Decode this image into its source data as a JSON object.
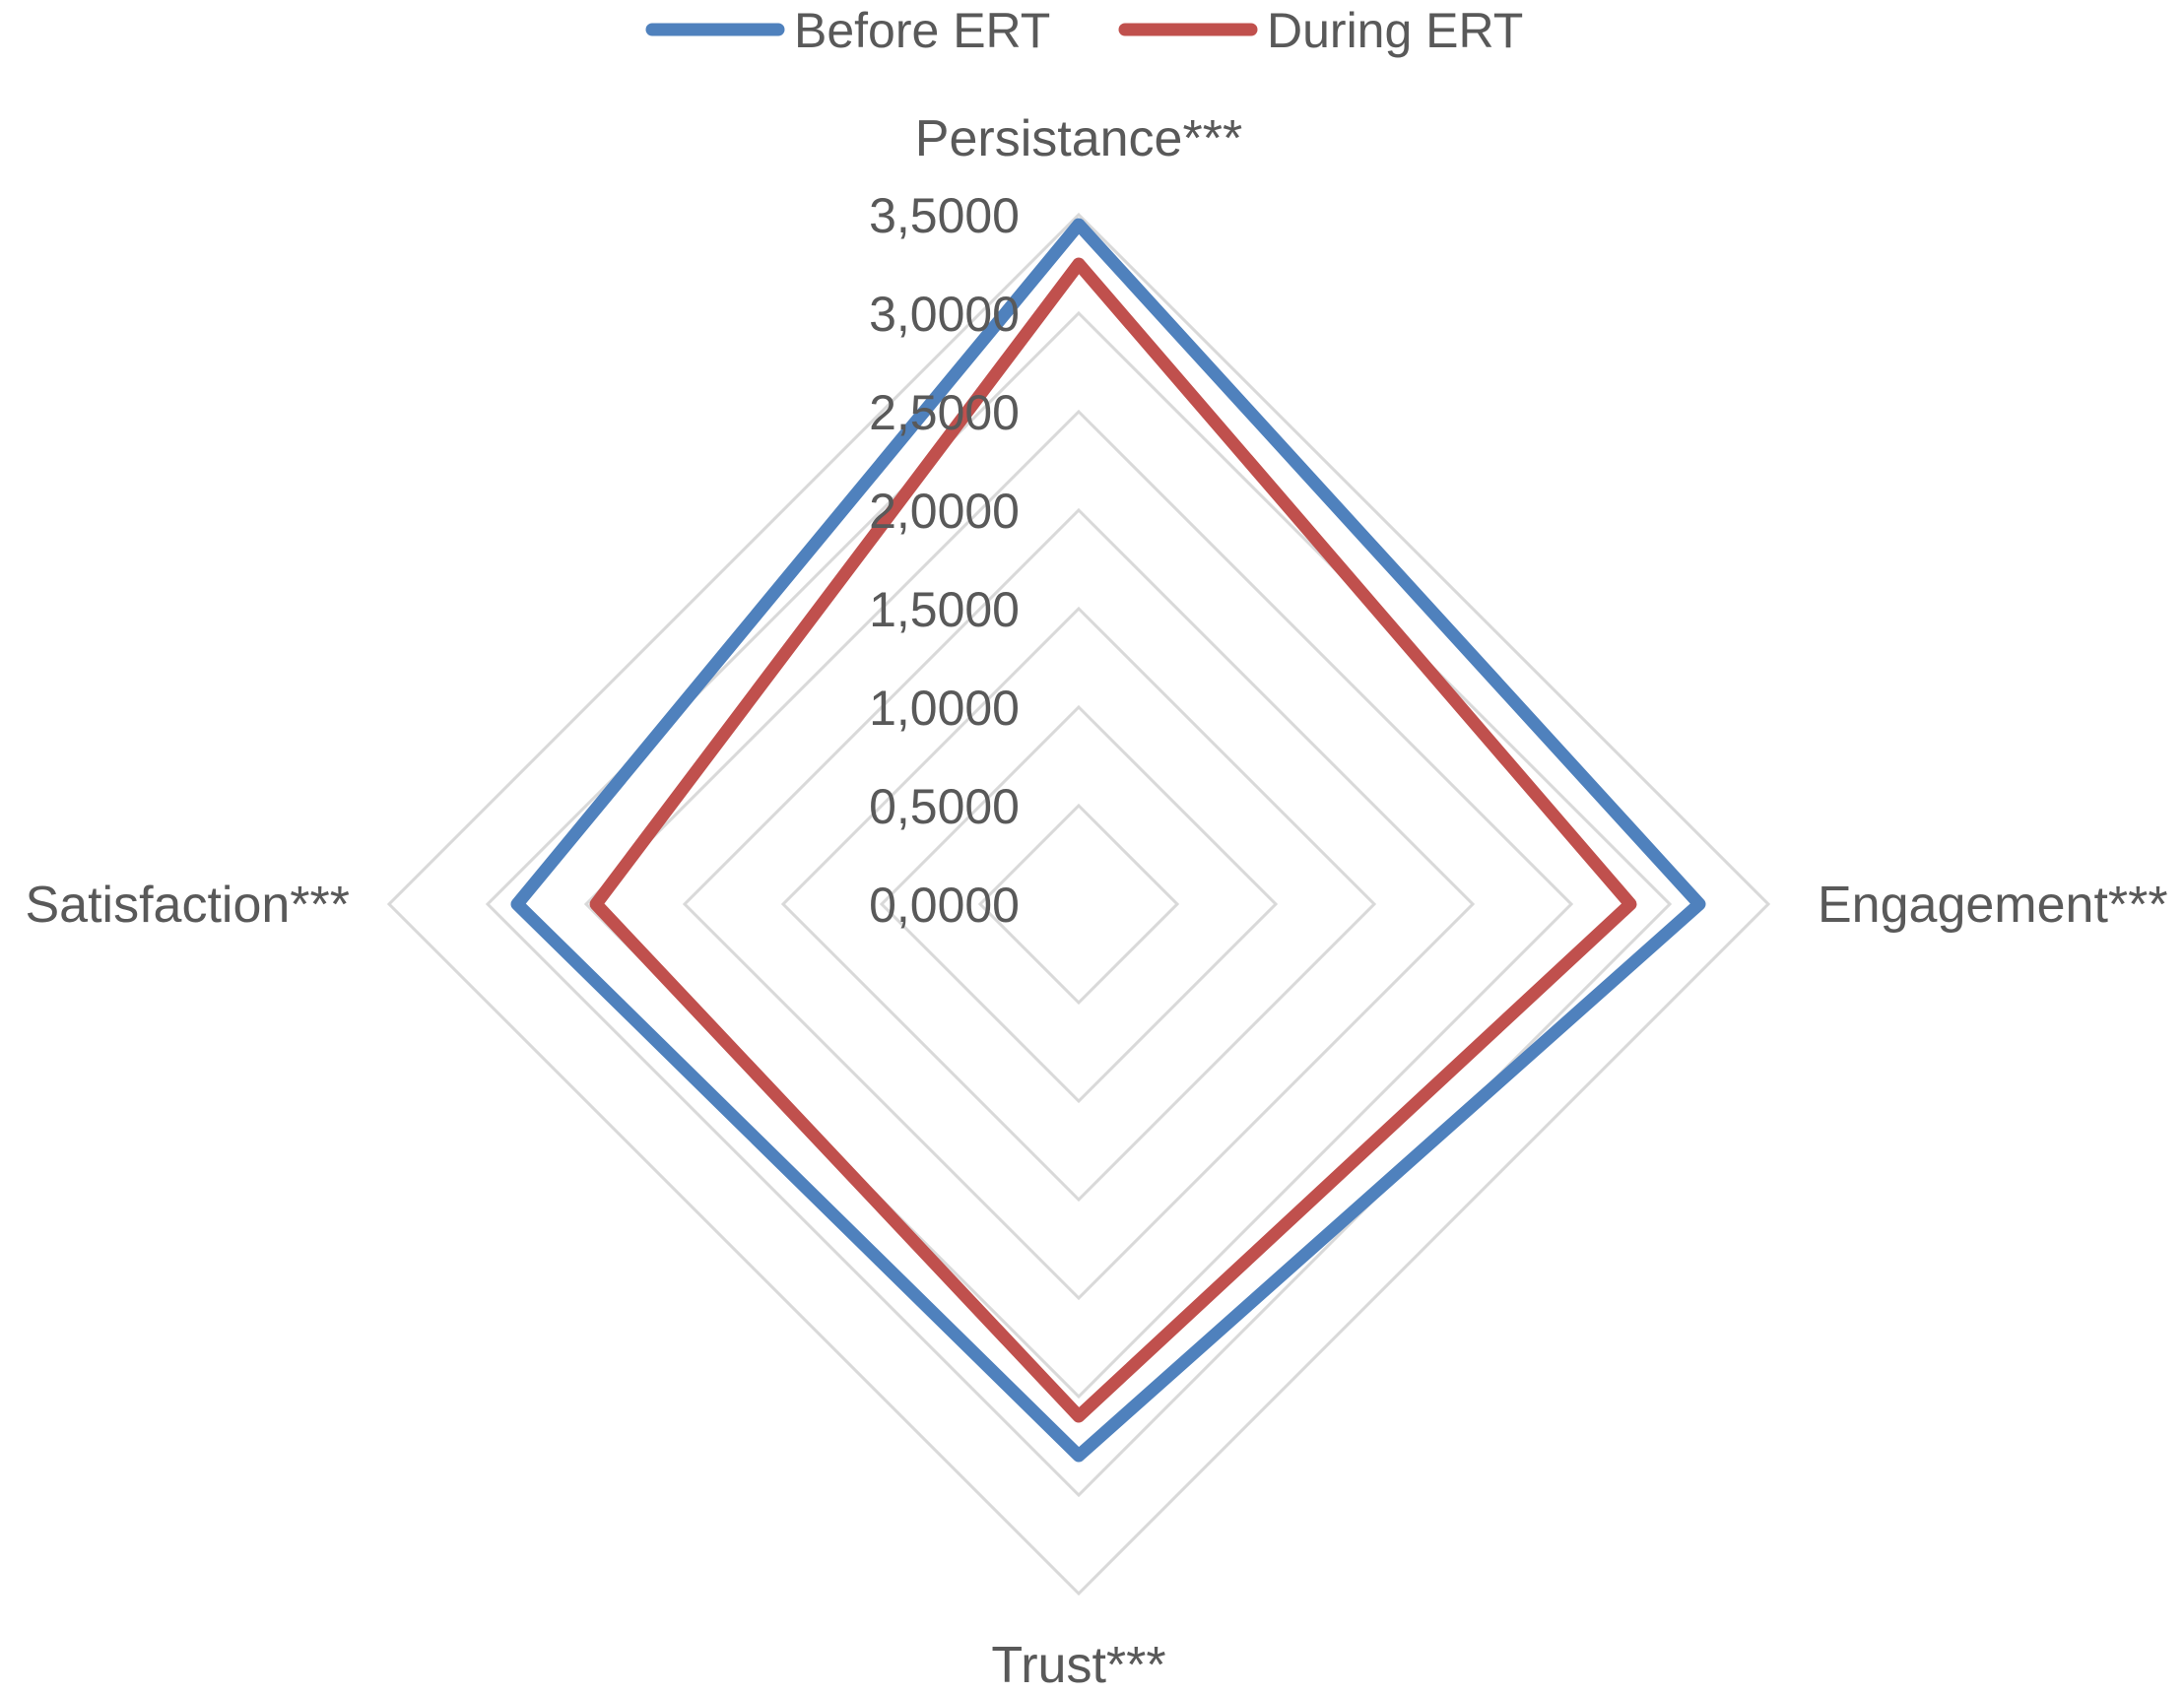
{
  "chart_data": {
    "type": "radar",
    "categories": [
      "Persistance***",
      "Engagement***",
      "Trust***",
      "Satisfaction***"
    ],
    "series": [
      {
        "name": "Before ERT",
        "color": "#4F81BD",
        "values": [
          3.45,
          3.15,
          2.8,
          2.85
        ]
      },
      {
        "name": "During ERT",
        "color": "#C0504D",
        "values": [
          3.25,
          2.8,
          2.6,
          2.45
        ]
      }
    ],
    "axis": {
      "min": 0,
      "max": 3.5,
      "step": 0.5,
      "tick_labels": [
        "0,0000",
        "0,5000",
        "1,0000",
        "1,5000",
        "2,0000",
        "2,5000",
        "3,0000",
        "3,5000"
      ]
    },
    "grid": true,
    "grid_color": "#D9D9D9",
    "text_color": "#595959",
    "legend": {
      "position": "top"
    }
  }
}
